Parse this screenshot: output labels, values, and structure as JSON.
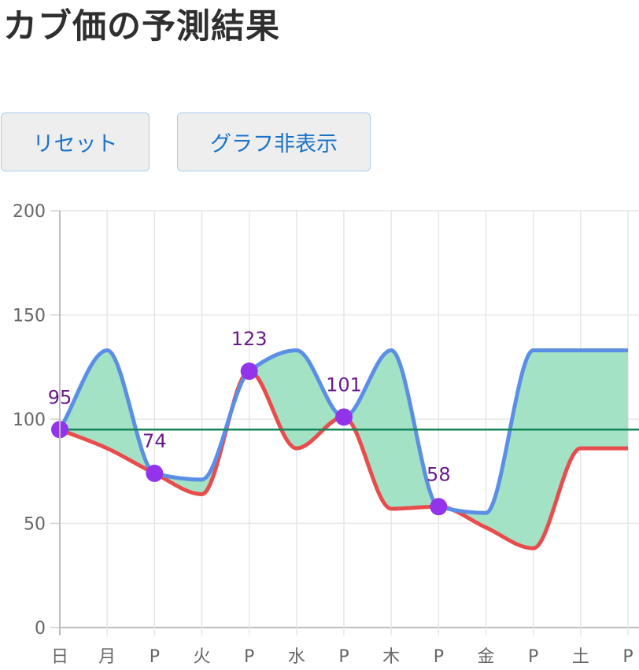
{
  "header": {
    "title": "カブ価の予測結果"
  },
  "buttons": {
    "reset_label": "リセット",
    "toggle_graph_label": "グラフ非表示"
  },
  "chart_data": {
    "type": "area",
    "title": "",
    "xlabel": "",
    "ylabel": "",
    "categories": [
      "日",
      "月",
      "P",
      "火",
      "P",
      "水",
      "P",
      "木",
      "P",
      "金",
      "P",
      "土",
      "P"
    ],
    "ylim": [
      0,
      200
    ],
    "yticks": [
      0,
      50,
      100,
      150,
      200
    ],
    "grid": true,
    "series": [
      {
        "role": "max",
        "color": "#5b8fe6",
        "values": [
          95,
          133,
          74,
          71,
          123,
          133,
          101,
          133,
          58,
          55,
          133,
          133,
          133
        ]
      },
      {
        "role": "min",
        "color": "#e84c4c",
        "values": [
          95,
          86,
          74,
          64,
          123,
          86,
          101,
          57,
          58,
          48,
          38,
          86,
          86
        ]
      },
      {
        "role": "reference",
        "color": "#16855a",
        "values": [
          95,
          95,
          95,
          95,
          95,
          95,
          95,
          95,
          95,
          95,
          95,
          95,
          95
        ]
      }
    ],
    "fill_color": "#a3e2c5",
    "points": [
      {
        "index": 0,
        "value": 95,
        "label": "95"
      },
      {
        "index": 2,
        "value": 74,
        "label": "74"
      },
      {
        "index": 4,
        "value": 123,
        "label": "123"
      },
      {
        "index": 6,
        "value": 101,
        "label": "101"
      },
      {
        "index": 8,
        "value": 58,
        "label": "58"
      }
    ],
    "point_color": "#9333ea"
  }
}
